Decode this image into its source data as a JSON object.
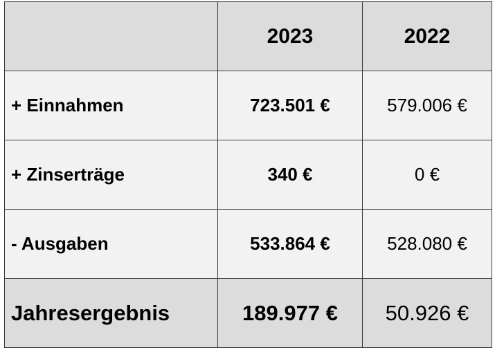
{
  "table": {
    "header": {
      "corner": "",
      "col_current": "2023",
      "col_previous": "2022"
    },
    "rows": [
      {
        "label": "+ Einnahmen",
        "current": "723.501 €",
        "previous": "579.006 €"
      },
      {
        "label": "+ Zinserträge",
        "current": "340 €",
        "previous": "0 €"
      },
      {
        "label": "- Ausgaben",
        "current": "533.864 €",
        "previous": "528.080 €"
      }
    ],
    "total": {
      "label": "Jahresergebnis",
      "current": "189.977 €",
      "previous": "50.926 €"
    }
  },
  "colors": {
    "header_bg": "#dcdcdc",
    "row_bg": "#f2f2f2",
    "border": "#3a3a3a"
  }
}
